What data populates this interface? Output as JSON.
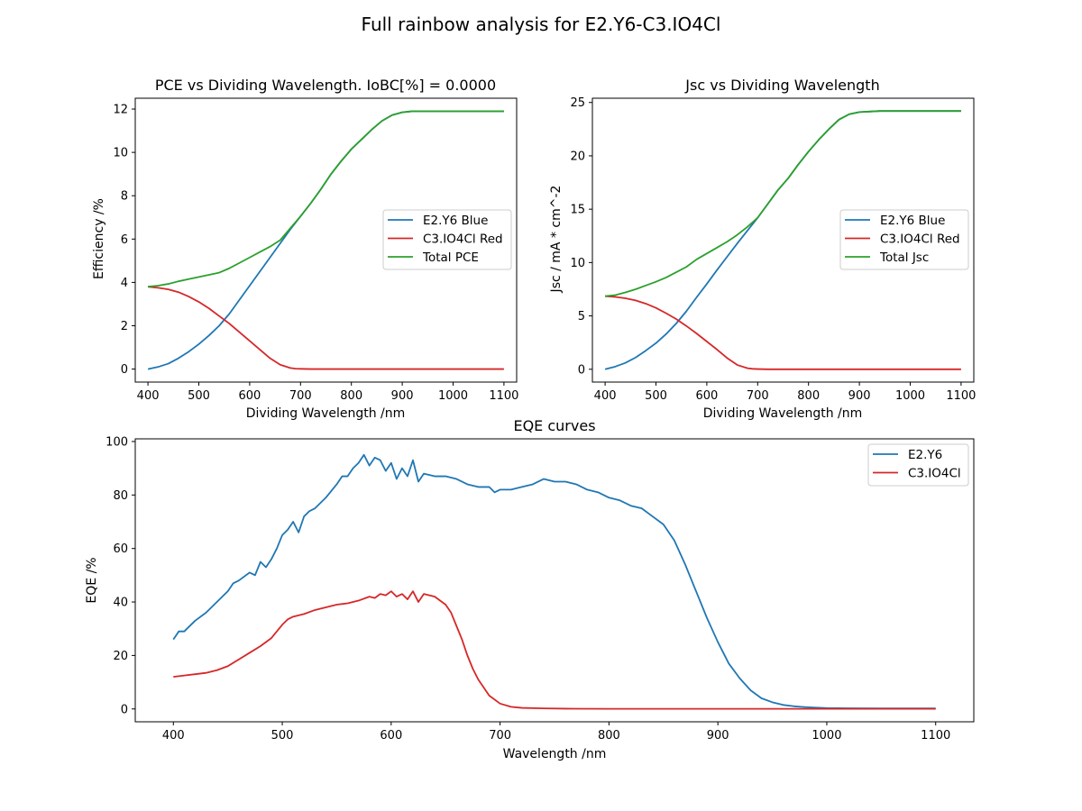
{
  "figure": {
    "title": "Full rainbow analysis for E2.Y6-C3.IO4Cl"
  },
  "chart_data": [
    {
      "type": "line",
      "title": "PCE vs Dividing Wavelength. IoBC[%] = 0.0000",
      "xlabel": "Dividing Wavelength /nm",
      "ylabel": "Efficiency /%",
      "xlim": [
        375,
        1125
      ],
      "ylim": [
        -0.6,
        12.5
      ],
      "xticks": [
        400,
        500,
        600,
        700,
        800,
        900,
        1000,
        1100
      ],
      "yticks": [
        0,
        2,
        4,
        6,
        8,
        10,
        12
      ],
      "legend": "center-right",
      "series": [
        {
          "name": "E2.Y6 Blue",
          "color": "#1f77b4",
          "x": [
            400,
            420,
            440,
            460,
            480,
            500,
            520,
            540,
            560,
            580,
            600,
            620,
            640,
            660,
            680,
            700,
            720,
            740,
            760,
            780,
            800,
            820,
            840,
            860,
            880,
            900,
            920,
            940,
            960,
            1000,
            1050,
            1100
          ],
          "y": [
            0.0,
            0.1,
            0.25,
            0.5,
            0.8,
            1.15,
            1.55,
            2.0,
            2.55,
            3.2,
            3.85,
            4.5,
            5.15,
            5.8,
            6.45,
            7.05,
            7.65,
            8.3,
            9.0,
            9.6,
            10.15,
            10.6,
            11.05,
            11.45,
            11.72,
            11.85,
            11.9,
            11.9,
            11.9,
            11.9,
            11.9,
            11.9
          ]
        },
        {
          "name": "C3.IO4Cl Red",
          "color": "#d62728",
          "x": [
            400,
            420,
            440,
            460,
            480,
            500,
            520,
            540,
            560,
            580,
            600,
            620,
            640,
            660,
            680,
            690,
            700,
            720,
            750,
            800,
            900,
            1000,
            1100
          ],
          "y": [
            3.8,
            3.75,
            3.68,
            3.55,
            3.35,
            3.1,
            2.8,
            2.45,
            2.1,
            1.7,
            1.3,
            0.9,
            0.5,
            0.2,
            0.05,
            0.02,
            0.01,
            0.0,
            0.0,
            0.0,
            0.0,
            0.0,
            0.0
          ]
        },
        {
          "name": "Total PCE",
          "color": "#2ca02c",
          "x": [
            400,
            420,
            440,
            460,
            480,
            500,
            520,
            540,
            560,
            580,
            600,
            620,
            640,
            660,
            680,
            700,
            720,
            740,
            760,
            780,
            800,
            820,
            840,
            860,
            880,
            900,
            920,
            940,
            960,
            1000,
            1050,
            1100
          ],
          "y": [
            3.8,
            3.85,
            3.93,
            4.05,
            4.15,
            4.25,
            4.35,
            4.45,
            4.65,
            4.9,
            5.15,
            5.4,
            5.65,
            5.95,
            6.5,
            7.05,
            7.65,
            8.3,
            9.0,
            9.6,
            10.15,
            10.6,
            11.05,
            11.45,
            11.72,
            11.85,
            11.9,
            11.9,
            11.9,
            11.9,
            11.9,
            11.9
          ]
        }
      ]
    },
    {
      "type": "line",
      "title": "Jsc vs Dividing Wavelength",
      "xlabel": "Dividing Wavelength /nm",
      "ylabel": "Jsc / mA * cm^-2",
      "xlim": [
        375,
        1125
      ],
      "ylim": [
        -1.2,
        25.4
      ],
      "xticks": [
        400,
        500,
        600,
        700,
        800,
        900,
        1000,
        1100
      ],
      "yticks": [
        0,
        5,
        10,
        15,
        20,
        25
      ],
      "legend": "center-right",
      "series": [
        {
          "name": "E2.Y6 Blue",
          "color": "#1f77b4",
          "x": [
            400,
            420,
            440,
            460,
            480,
            500,
            520,
            540,
            560,
            580,
            600,
            620,
            640,
            660,
            680,
            700,
            720,
            740,
            760,
            780,
            800,
            820,
            840,
            860,
            880,
            900,
            920,
            940,
            960,
            1000,
            1050,
            1100
          ],
          "y": [
            0.0,
            0.25,
            0.6,
            1.1,
            1.75,
            2.45,
            3.3,
            4.3,
            5.45,
            6.75,
            8.0,
            9.3,
            10.55,
            11.8,
            13.0,
            14.2,
            15.5,
            16.8,
            17.9,
            19.2,
            20.4,
            21.5,
            22.5,
            23.4,
            23.9,
            24.1,
            24.15,
            24.2,
            24.2,
            24.2,
            24.2,
            24.2
          ]
        },
        {
          "name": "C3.IO4Cl Red",
          "color": "#d62728",
          "x": [
            400,
            420,
            440,
            460,
            480,
            500,
            520,
            540,
            560,
            580,
            600,
            620,
            640,
            660,
            680,
            690,
            700,
            720,
            750,
            800,
            900,
            1000,
            1100
          ],
          "y": [
            6.85,
            6.78,
            6.65,
            6.45,
            6.15,
            5.75,
            5.25,
            4.7,
            4.05,
            3.35,
            2.6,
            1.85,
            1.05,
            0.4,
            0.1,
            0.04,
            0.02,
            0.0,
            0.0,
            0.0,
            0.0,
            0.0,
            0.0
          ]
        },
        {
          "name": "Total Jsc",
          "color": "#2ca02c",
          "x": [
            400,
            420,
            440,
            460,
            480,
            500,
            520,
            540,
            560,
            580,
            600,
            620,
            640,
            660,
            680,
            700,
            720,
            740,
            760,
            780,
            800,
            820,
            840,
            860,
            880,
            900,
            920,
            940,
            960,
            1000,
            1050,
            1100
          ],
          "y": [
            6.85,
            6.95,
            7.2,
            7.5,
            7.85,
            8.2,
            8.6,
            9.1,
            9.6,
            10.3,
            10.85,
            11.4,
            11.95,
            12.6,
            13.35,
            14.2,
            15.5,
            16.8,
            17.9,
            19.2,
            20.4,
            21.5,
            22.5,
            23.4,
            23.9,
            24.1,
            24.15,
            24.2,
            24.2,
            24.2,
            24.2,
            24.2
          ]
        }
      ]
    },
    {
      "type": "line",
      "title": "EQE curves",
      "xlabel": "Wavelength /nm",
      "ylabel": "EQE /%",
      "xlim": [
        365,
        1135
      ],
      "ylim": [
        -4.8,
        101
      ],
      "xticks": [
        400,
        500,
        600,
        700,
        800,
        900,
        1000,
        1100
      ],
      "yticks": [
        0,
        20,
        40,
        60,
        80,
        100
      ],
      "legend": "top-right",
      "series": [
        {
          "name": "E2.Y6",
          "color": "#1f77b4",
          "x": [
            400,
            405,
            410,
            420,
            430,
            440,
            450,
            455,
            460,
            470,
            475,
            480,
            485,
            490,
            495,
            500,
            505,
            510,
            515,
            520,
            525,
            530,
            540,
            550,
            555,
            560,
            565,
            570,
            575,
            580,
            585,
            590,
            595,
            600,
            605,
            610,
            615,
            620,
            625,
            630,
            640,
            650,
            660,
            670,
            680,
            690,
            695,
            700,
            710,
            720,
            730,
            740,
            750,
            760,
            770,
            780,
            790,
            800,
            810,
            820,
            830,
            840,
            850,
            860,
            870,
            880,
            890,
            900,
            910,
            920,
            930,
            940,
            950,
            960,
            970,
            980,
            990,
            1000,
            1020,
            1050,
            1100
          ],
          "y": [
            26,
            29,
            29,
            33,
            36,
            40,
            44,
            47,
            48,
            51,
            50,
            55,
            53,
            56,
            60,
            65,
            67,
            70,
            66,
            72,
            74,
            75,
            79,
            84,
            87,
            87,
            90,
            92,
            95,
            91,
            94,
            93,
            89,
            92,
            86,
            90,
            87,
            93,
            85,
            88,
            87,
            87,
            86,
            84,
            83,
            83,
            81,
            82,
            82,
            83,
            84,
            86,
            85,
            85,
            84,
            82,
            81,
            79,
            78,
            76,
            75,
            72,
            69,
            63,
            54,
            44,
            34,
            25,
            17,
            11.5,
            7,
            4,
            2.5,
            1.5,
            1.0,
            0.7,
            0.5,
            0.35,
            0.25,
            0.2,
            0.2
          ]
        },
        {
          "name": "C3.IO4Cl",
          "color": "#d62728",
          "x": [
            400,
            410,
            420,
            430,
            440,
            450,
            460,
            470,
            480,
            490,
            500,
            505,
            510,
            520,
            530,
            540,
            550,
            560,
            570,
            580,
            585,
            590,
            595,
            600,
            605,
            610,
            615,
            620,
            625,
            630,
            640,
            650,
            655,
            660,
            665,
            670,
            675,
            680,
            690,
            700,
            710,
            720,
            740,
            760,
            800,
            900,
            1000,
            1100
          ],
          "y": [
            12,
            12.5,
            13,
            13.5,
            14.5,
            16,
            18.5,
            21,
            23.5,
            26.5,
            31.5,
            33.5,
            34.5,
            35.5,
            37,
            38,
            39,
            39.5,
            40.5,
            42,
            41.5,
            43,
            42.5,
            44,
            42,
            43,
            41,
            44,
            40,
            43,
            42,
            39,
            36,
            31,
            26,
            20,
            15,
            11,
            5,
            2,
            0.8,
            0.4,
            0.2,
            0.1,
            0.05,
            0.05,
            0.05,
            0.05
          ]
        }
      ]
    }
  ]
}
